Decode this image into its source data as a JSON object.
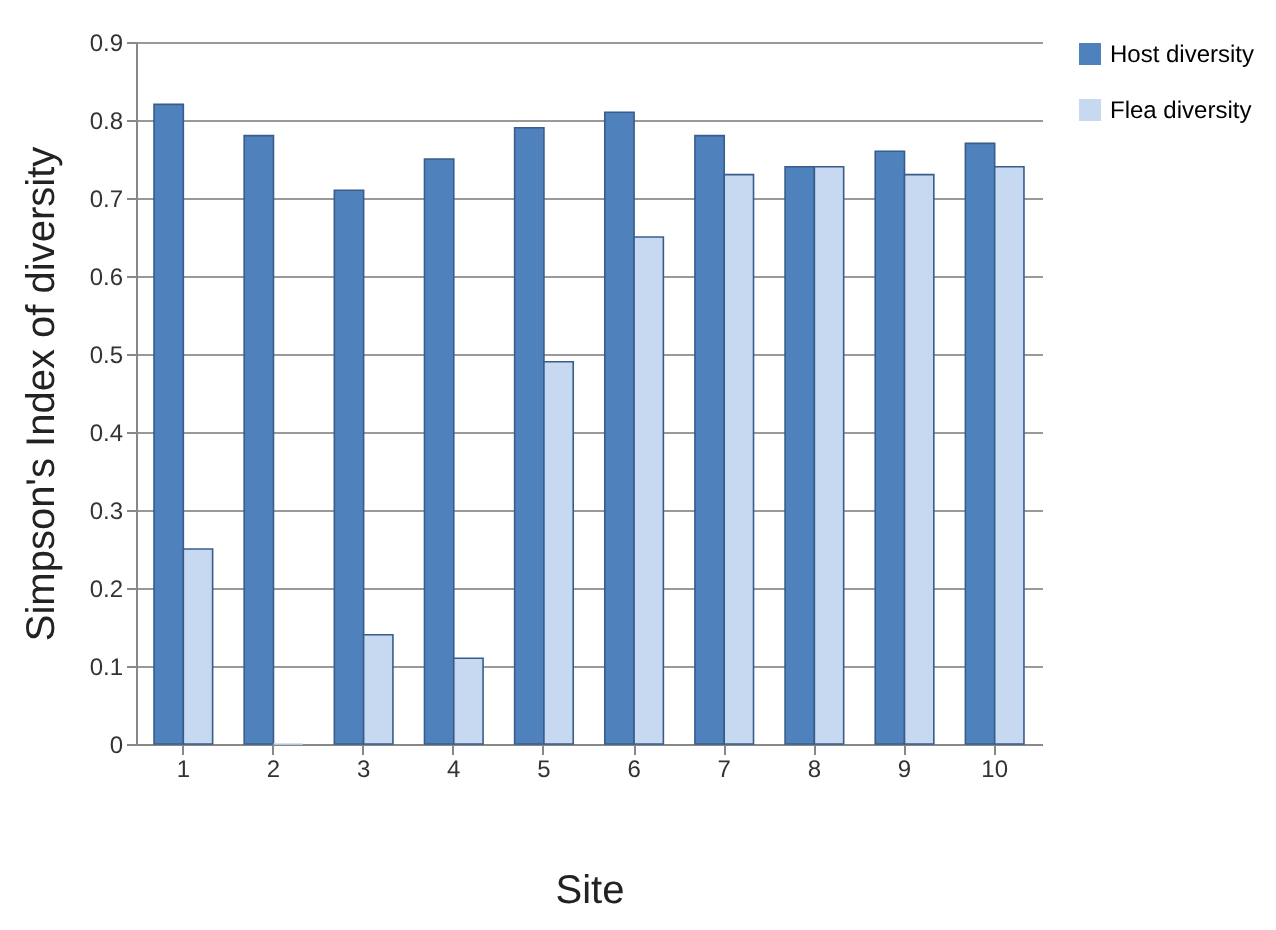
{
  "chart_data": {
    "type": "bar",
    "xlabel": "Site",
    "ylabel": "Simpson's Index of diversity",
    "categories": [
      "1",
      "2",
      "3",
      "4",
      "5",
      "6",
      "7",
      "8",
      "9",
      "10"
    ],
    "series": [
      {
        "name": "Host diversity",
        "color": "#4f81bd",
        "values": [
          0.82,
          0.78,
          0.71,
          0.75,
          0.79,
          0.81,
          0.78,
          0.74,
          0.76,
          0.77
        ]
      },
      {
        "name": "Flea diversity",
        "color": "#c6d9f1",
        "values": [
          0.25,
          0.0,
          0.14,
          0.11,
          0.49,
          0.65,
          0.73,
          0.74,
          0.73,
          0.74
        ]
      }
    ],
    "ylim": [
      0,
      0.9
    ],
    "yticks": [
      0,
      0.1,
      0.2,
      0.3,
      0.4,
      0.5,
      0.6,
      0.7,
      0.8,
      0.9
    ],
    "grid": "y",
    "legend": "right"
  }
}
